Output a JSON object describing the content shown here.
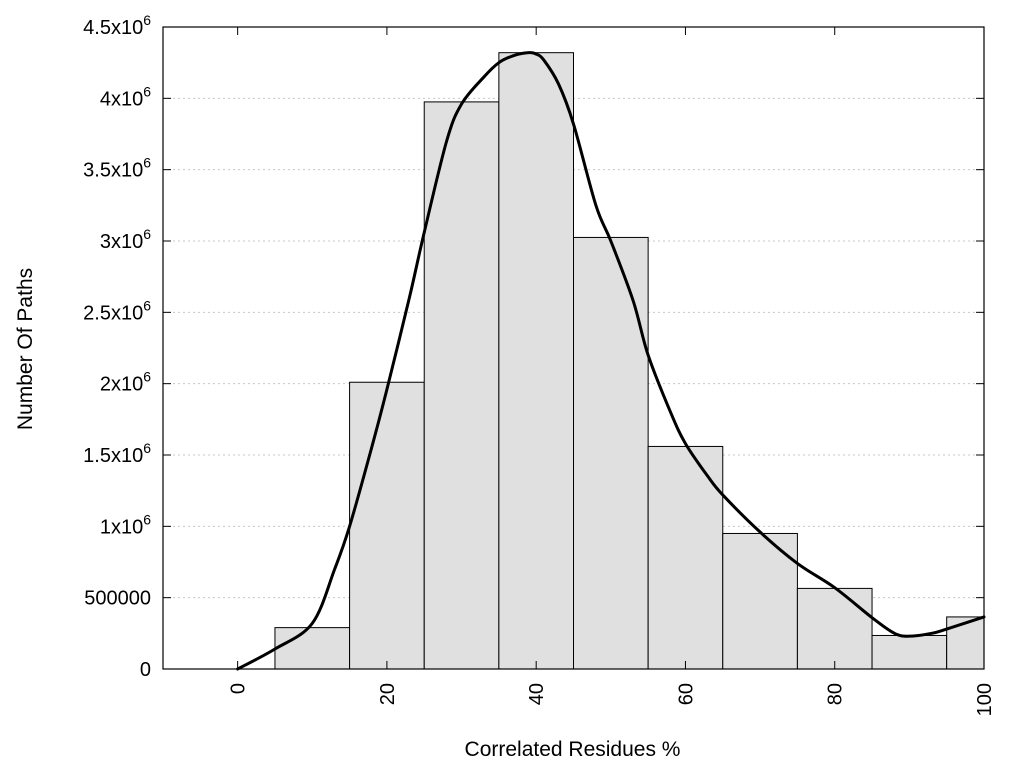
{
  "chart_data": {
    "type": "bar",
    "title": "",
    "xlabel": "Correlated Residues %",
    "ylabel": "Number Of Paths",
    "xlim": [
      -10,
      100
    ],
    "ylim": [
      0,
      4500000
    ],
    "x_ticks": [
      {
        "value": 0,
        "label": "0"
      },
      {
        "value": 20,
        "label": "20"
      },
      {
        "value": 40,
        "label": "40"
      },
      {
        "value": 60,
        "label": "60"
      },
      {
        "value": 80,
        "label": "80"
      },
      {
        "value": 100,
        "label": "100"
      }
    ],
    "y_ticks": [
      {
        "value": 0,
        "mant": "0",
        "exp": ""
      },
      {
        "value": 500000,
        "mant": "500000",
        "exp": ""
      },
      {
        "value": 1000000,
        "mant": "1x10",
        "exp": "6"
      },
      {
        "value": 1500000,
        "mant": "1.5x10",
        "exp": "6"
      },
      {
        "value": 2000000,
        "mant": "2x10",
        "exp": "6"
      },
      {
        "value": 2500000,
        "mant": "2.5x10",
        "exp": "6"
      },
      {
        "value": 3000000,
        "mant": "3x10",
        "exp": "6"
      },
      {
        "value": 3500000,
        "mant": "3.5x10",
        "exp": "6"
      },
      {
        "value": 4000000,
        "mant": "4x10",
        "exp": "6"
      },
      {
        "value": 4500000,
        "mant": "4.5x10",
        "exp": "6"
      }
    ],
    "grid": "horizontal-dotted",
    "bin_width": 10,
    "bins": [
      {
        "center": 10,
        "value": 290000
      },
      {
        "center": 20,
        "value": 2010000
      },
      {
        "center": 30,
        "value": 3975000
      },
      {
        "center": 40,
        "value": 4320000
      },
      {
        "center": 50,
        "value": 3025000
      },
      {
        "center": 60,
        "value": 1560000
      },
      {
        "center": 70,
        "value": 950000
      },
      {
        "center": 80,
        "value": 565000
      },
      {
        "center": 90,
        "value": 235000
      },
      {
        "center": 100,
        "value": 365000
      }
    ],
    "curve": {
      "x": [
        0,
        5,
        10,
        13,
        15,
        18,
        20,
        23,
        25,
        28,
        30,
        33,
        35,
        37,
        39,
        40,
        41,
        43,
        45,
        48,
        50,
        53,
        55,
        58,
        60,
        63,
        65,
        70,
        75,
        80,
        85,
        88,
        90,
        93,
        95,
        100
      ],
      "y": [
        0,
        140000,
        320000,
        700000,
        1000000,
        1560000,
        1960000,
        2600000,
        3060000,
        3700000,
        3960000,
        4150000,
        4250000,
        4300000,
        4320000,
        4310000,
        4270000,
        4100000,
        3820000,
        3250000,
        3000000,
        2580000,
        2200000,
        1800000,
        1580000,
        1350000,
        1220000,
        960000,
        740000,
        570000,
        360000,
        250000,
        230000,
        250000,
        280000,
        365000
      ]
    }
  }
}
